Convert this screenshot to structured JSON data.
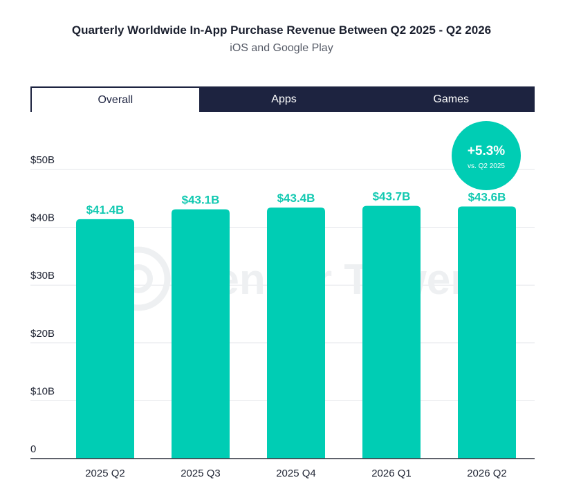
{
  "header": {
    "title": "Quarterly Worldwide In-App Purchase Revenue Between Q2 2025 - Q2 2026",
    "subtitle": "iOS and Google Play"
  },
  "tabs": [
    {
      "label": "Overall",
      "active": true
    },
    {
      "label": "Apps",
      "active": false
    },
    {
      "label": "Games",
      "active": false
    }
  ],
  "watermark": "Sensor Tower",
  "callout": {
    "value": "+5.3%",
    "note": "vs. Q2 2025"
  },
  "colors": {
    "bar": "#00cdb4",
    "label": "#12c9b1",
    "grid": "#e3e5ea",
    "tab_bg": "#1d2340"
  },
  "chart_data": {
    "type": "bar",
    "categories": [
      "2025 Q2",
      "2025 Q3",
      "2025 Q4",
      "2026 Q1",
      "2026 Q2"
    ],
    "values": [
      41.4,
      43.1,
      43.4,
      43.7,
      43.6
    ],
    "data_labels": [
      "$41.4B",
      "$43.1B",
      "$43.4B",
      "$43.7B",
      "$43.6B"
    ],
    "y_ticks": [
      0,
      10,
      20,
      30,
      40,
      50
    ],
    "y_tick_labels": [
      "0",
      "$10B",
      "$20B",
      "$30B",
      "$40B",
      "$50B"
    ],
    "ylim": [
      0,
      50
    ],
    "grid": true
  }
}
